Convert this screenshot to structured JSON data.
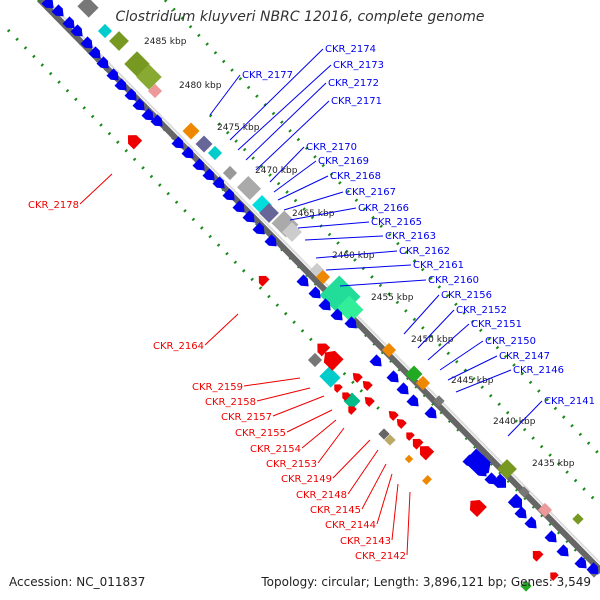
{
  "title": "Clostridium kluyveri NBRC 12016, complete genome",
  "footer": {
    "accession": "Accession: NC_011837",
    "stats": "Topology: circular; Length: 3,896,121 bp; Genes: 3,549"
  },
  "colors": {
    "forward_gene": "#0000ee",
    "reverse_gene": "#ee0000",
    "backbone": "#888888",
    "tick_dots": "#1a8a1a"
  },
  "kbp_ticks": [
    "2485 kbp",
    "2480 kbp",
    "2475 kbp",
    "2470 kbp",
    "2465 kbp",
    "2460 kbp",
    "2455 kbp",
    "2450 kbp",
    "2445 kbp",
    "2440 kbp",
    "2435 kbp"
  ],
  "blue_labels": [
    "CKR_2177",
    "CKR_2174",
    "CKR_2173",
    "CKR_2172",
    "CKR_2171",
    "CKR_2170",
    "CKR_2169",
    "CKR_2168",
    "CKR_2167",
    "CKR_2166",
    "CKR_2165",
    "CKR_2163",
    "CKR_2162",
    "CKR_2161",
    "CKR_2160",
    "CKR_2156",
    "CKR_2152",
    "CKR_2151",
    "CKR_2150",
    "CKR_2147",
    "CKR_2146",
    "CKR_2141"
  ],
  "red_labels": [
    "CKR_2178",
    "CKR_2164",
    "CKR_2159",
    "CKR_2158",
    "CKR_2157",
    "CKR_2155",
    "CKR_2154",
    "CKR_2153",
    "CKR_2149",
    "CKR_2148",
    "CKR_2145",
    "CKR_2144",
    "CKR_2143",
    "CKR_2142"
  ]
}
